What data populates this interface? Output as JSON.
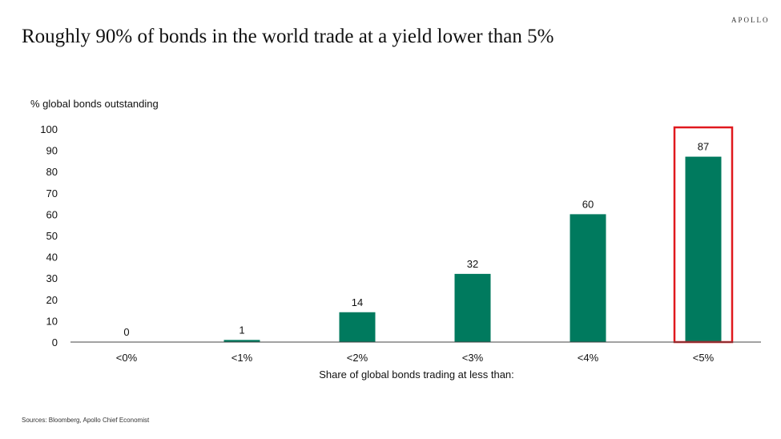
{
  "title": "Roughly 90% of bonds in the world trade at a yield lower than 5%",
  "brand": "APOLLO",
  "source": "Sources: Bloomberg, Apollo Chief Economist",
  "colors": {
    "bar": "#007a5e",
    "highlight": "#e0191e"
  },
  "chart_data": {
    "type": "bar",
    "title": "Roughly 90% of bonds in the world trade at a yield lower than 5%",
    "ylabel": "% global bonds outstanding",
    "xlabel": "Share of global bonds trading at less than:",
    "categories": [
      "<0%",
      "<1%",
      "<2%",
      "<3%",
      "<4%",
      "<5%"
    ],
    "values": [
      0,
      1,
      14,
      32,
      60,
      87
    ],
    "ylim": [
      0,
      100
    ],
    "yticks": [
      0,
      10,
      20,
      30,
      40,
      50,
      60,
      70,
      80,
      90,
      100
    ],
    "grid": false,
    "highlighted_category": "<5%"
  }
}
